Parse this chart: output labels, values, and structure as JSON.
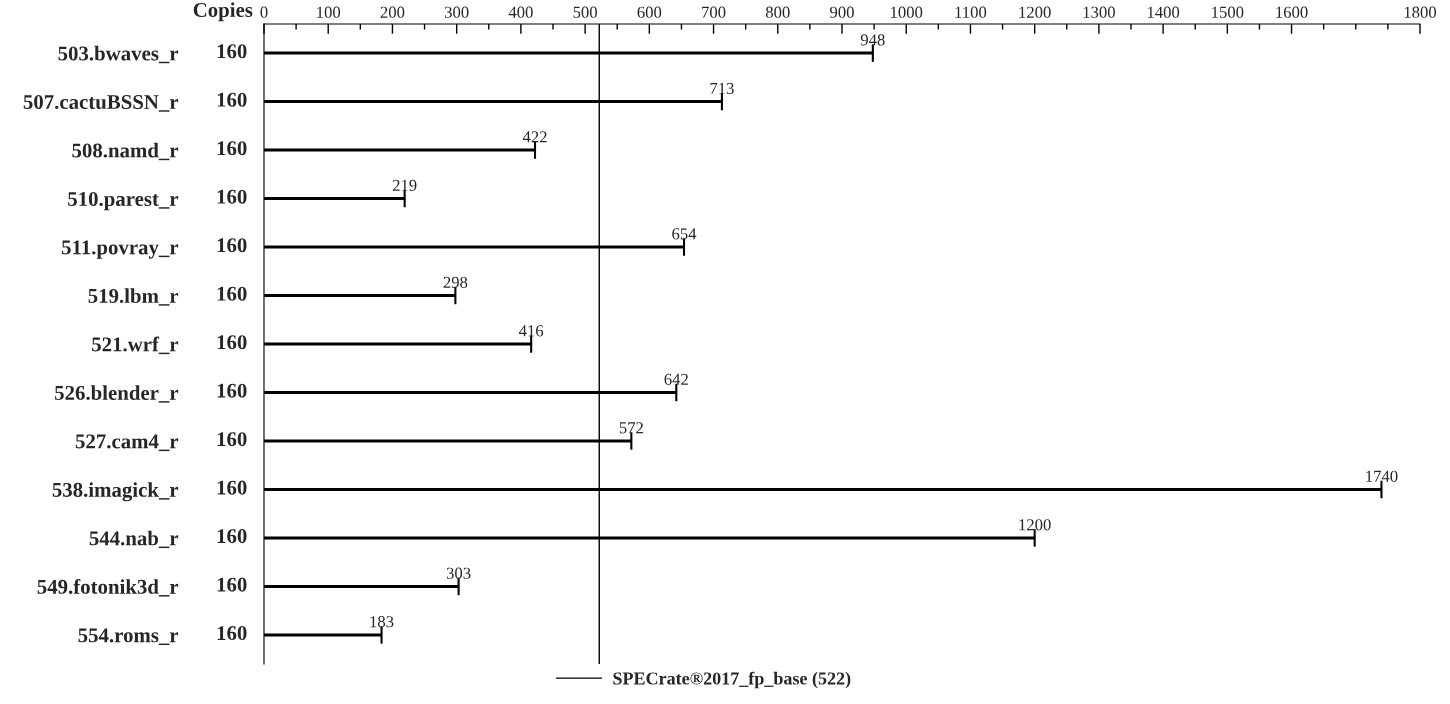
{
  "chart_data": {
    "type": "bar",
    "orientation": "horizontal",
    "categories": [
      "503.bwaves_r",
      "507.cactuBSSN_r",
      "508.namd_r",
      "510.parest_r",
      "511.povray_r",
      "519.lbm_r",
      "521.wrf_r",
      "526.blender_r",
      "527.cam4_r",
      "538.imagick_r",
      "544.nab_r",
      "549.fotonik3d_r",
      "554.roms_r"
    ],
    "y2_categories": [
      "160",
      "160",
      "160",
      "160",
      "160",
      "160",
      "160",
      "160",
      "160",
      "160",
      "160",
      "160",
      "160"
    ],
    "y2label": "Copies",
    "values": [
      948,
      713,
      422,
      219,
      654,
      298,
      416,
      642,
      572,
      1740,
      1200,
      303,
      183
    ],
    "color": "#000000",
    "data_labels": true,
    "xlim": [
      0,
      1800
    ],
    "xticks": [
      0,
      {
        "value": 50,
        "label": null
      },
      100,
      {
        "value": 150,
        "label": null
      },
      200,
      {
        "value": 250,
        "label": null
      },
      300,
      {
        "value": 350,
        "label": null
      },
      400,
      {
        "value": 450,
        "label": null
      },
      500,
      {
        "value": 550,
        "label": null
      },
      600,
      {
        "value": 650,
        "label": null
      },
      700,
      {
        "value": 750,
        "label": null
      },
      800,
      {
        "value": 850,
        "label": null
      },
      900,
      {
        "value": 950,
        "label": null
      },
      1000,
      {
        "value": 1050,
        "label": null
      },
      1100,
      {
        "value": 1150,
        "label": null
      },
      1200,
      {
        "value": 1250,
        "label": null
      },
      1300,
      {
        "value": 1350,
        "label": null
      },
      1400,
      {
        "value": 1450,
        "label": null
      },
      1500,
      {
        "value": 1550,
        "label": null
      },
      1600,
      {
        "value": 1650,
        "label": null
      },
      {
        "value": 1700,
        "label": null
      },
      {
        "value": 1750,
        "label": null
      },
      1800
    ],
    "ref_lines": [
      {
        "axis": "x",
        "value": 522,
        "label": "SPECrate®2017_fp_base (522)",
        "color": "#000000"
      }
    ],
    "grid": false,
    "legend": "bottom"
  }
}
